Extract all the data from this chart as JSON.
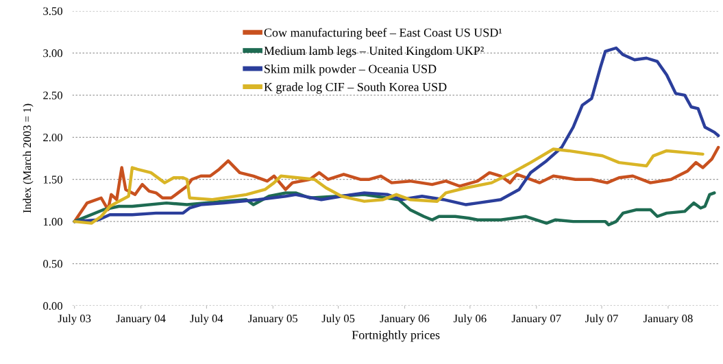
{
  "chart_data": {
    "type": "line",
    "xlabel": "Fortnightly prices",
    "ylabel": "Index (March 2003 = 1)",
    "xlim": [
      "2003-06-25",
      "2008-05-22"
    ],
    "ylim": [
      0,
      3.5
    ],
    "xticks": [
      {
        "value": "2003-07-01",
        "label": "July 03"
      },
      {
        "value": "2004-01-01",
        "label": "January 04"
      },
      {
        "value": "2004-07-01",
        "label": "July 04"
      },
      {
        "value": "2005-01-01",
        "label": "January 05"
      },
      {
        "value": "2005-07-01",
        "label": "July 05"
      },
      {
        "value": "2006-01-01",
        "label": "January 06"
      },
      {
        "value": "2006-07-01",
        "label": "July 06"
      },
      {
        "value": "2007-01-01",
        "label": "January 07"
      },
      {
        "value": "2007-07-01",
        "label": "July 07"
      },
      {
        "value": "2008-01-01",
        "label": "January 08"
      }
    ],
    "yticks": [
      {
        "value": 0,
        "label": "0.00"
      },
      {
        "value": 0.5,
        "label": "0.50"
      },
      {
        "value": 1,
        "label": "1.00"
      },
      {
        "value": 1.5,
        "label": "1.50"
      },
      {
        "value": 2,
        "label": "2.00"
      },
      {
        "value": 2.5,
        "label": "2.50"
      },
      {
        "value": 3,
        "label": "3.00"
      },
      {
        "value": 3.5,
        "label": "3.50"
      }
    ],
    "grid": "y",
    "legend": "top",
    "line_style": "solid",
    "marker": "none",
    "series": [
      {
        "name": "Cow manufacturing beef – East Coast US USD¹",
        "color": "#c8511f",
        "x": [
          "2003-07-01",
          "2003-08-05",
          "2003-09-13",
          "2003-10-02",
          "2003-10-11",
          "2003-10-26",
          "2003-11-09",
          "2003-11-20",
          "2003-12-16",
          "2004-01-05",
          "2004-01-24",
          "2004-02-12",
          "2004-03-01",
          "2004-03-25",
          "2004-04-13",
          "2004-05-08",
          "2004-05-21",
          "2004-06-15",
          "2004-07-11",
          "2004-08-05",
          "2004-08-30",
          "2004-10-01",
          "2004-11-08",
          "2004-12-16",
          "2005-01-04",
          "2005-02-05",
          "2005-02-24",
          "2005-04-13",
          "2005-05-09",
          "2005-06-03",
          "2005-07-16",
          "2005-08-31",
          "2005-09-25",
          "2005-10-27",
          "2005-11-26",
          "2006-01-16",
          "2006-03-18",
          "2006-04-25",
          "2006-06-02",
          "2006-07-22",
          "2006-08-24",
          "2006-09-24",
          "2006-10-20",
          "2006-11-08",
          "2007-01-10",
          "2007-02-17",
          "2007-04-19",
          "2007-06-03",
          "2007-07-16",
          "2007-08-18",
          "2007-09-25",
          "2007-11-13",
          "2008-01-09",
          "2008-02-24",
          "2008-03-18",
          "2008-04-06",
          "2008-05-01",
          "2008-05-19"
        ],
        "values": [
          1.0,
          1.22,
          1.28,
          1.14,
          1.32,
          1.26,
          1.64,
          1.38,
          1.32,
          1.44,
          1.36,
          1.34,
          1.28,
          1.28,
          1.34,
          1.42,
          1.5,
          1.54,
          1.54,
          1.62,
          1.72,
          1.58,
          1.54,
          1.48,
          1.54,
          1.38,
          1.46,
          1.5,
          1.58,
          1.5,
          1.56,
          1.5,
          1.5,
          1.54,
          1.46,
          1.48,
          1.44,
          1.48,
          1.42,
          1.48,
          1.58,
          1.54,
          1.46,
          1.56,
          1.46,
          1.54,
          1.5,
          1.5,
          1.46,
          1.52,
          1.54,
          1.46,
          1.5,
          1.6,
          1.7,
          1.64,
          1.74,
          1.88
        ]
      },
      {
        "name": "Medium lamb legs – United Kingdom UKP²",
        "color": "#1e6b52",
        "x": [
          "2003-07-01",
          "2003-09-19",
          "2003-11-01",
          "2003-12-08",
          "2004-03-12",
          "2004-05-08",
          "2004-08-18",
          "2004-10-19",
          "2004-11-08",
          "2004-12-21",
          "2005-02-05",
          "2005-03-05",
          "2005-04-13",
          "2005-09-11",
          "2005-12-15",
          "2006-01-16",
          "2006-02-23",
          "2006-03-18",
          "2006-04-06",
          "2006-05-21",
          "2006-06-28",
          "2006-07-22",
          "2006-09-24",
          "2006-12-03",
          "2007-01-29",
          "2007-02-23",
          "2007-04-13",
          "2007-07-11",
          "2007-07-20",
          "2007-08-10",
          "2007-08-29",
          "2007-10-06",
          "2007-11-13",
          "2007-12-02",
          "2007-12-28",
          "2008-02-16",
          "2008-03-12",
          "2008-03-31",
          "2008-04-12",
          "2008-04-25",
          "2008-05-08"
        ],
        "values": [
          1.0,
          1.14,
          1.18,
          1.18,
          1.22,
          1.2,
          1.24,
          1.26,
          1.2,
          1.3,
          1.34,
          1.34,
          1.28,
          1.32,
          1.26,
          1.14,
          1.06,
          1.02,
          1.06,
          1.06,
          1.04,
          1.02,
          1.02,
          1.06,
          0.98,
          1.02,
          1.0,
          1.0,
          0.96,
          1.0,
          1.1,
          1.14,
          1.14,
          1.06,
          1.1,
          1.12,
          1.22,
          1.16,
          1.18,
          1.32,
          1.34
        ]
      },
      {
        "name": "Skim milk powder – Oceania USD",
        "color": "#2b3e9b",
        "x": [
          "2003-07-01",
          "2003-09-05",
          "2003-10-07",
          "2003-12-08",
          "2004-02-12",
          "2004-04-27",
          "2004-05-15",
          "2004-06-15",
          "2004-08-18",
          "2004-11-21",
          "2005-02-05",
          "2005-03-05",
          "2005-05-15",
          "2005-07-10",
          "2005-09-11",
          "2005-11-15",
          "2005-12-22",
          "2006-02-18",
          "2006-04-19",
          "2006-06-20",
          "2006-07-22",
          "2006-09-24",
          "2006-11-14",
          "2006-12-16",
          "2007-01-29",
          "2007-03-12",
          "2007-04-13",
          "2007-05-08",
          "2007-06-03",
          "2007-06-28",
          "2007-07-11",
          "2007-08-10",
          "2007-08-29",
          "2007-09-30",
          "2007-11-02",
          "2007-12-02",
          "2007-12-28",
          "2008-01-22",
          "2008-02-16",
          "2008-03-05",
          "2008-03-24",
          "2008-04-12",
          "2008-05-08",
          "2008-05-19"
        ],
        "values": [
          1.0,
          1.02,
          1.08,
          1.08,
          1.1,
          1.1,
          1.16,
          1.2,
          1.22,
          1.26,
          1.3,
          1.32,
          1.26,
          1.3,
          1.34,
          1.32,
          1.26,
          1.3,
          1.26,
          1.2,
          1.22,
          1.26,
          1.38,
          1.58,
          1.72,
          1.88,
          2.12,
          2.38,
          2.46,
          2.84,
          3.02,
          3.06,
          2.98,
          2.92,
          2.94,
          2.9,
          2.74,
          2.52,
          2.5,
          2.36,
          2.34,
          2.12,
          2.06,
          2.02
        ]
      },
      {
        "name": "K grade log CIF – South Korea USD",
        "color": "#d9b526",
        "x": [
          "2003-07-01",
          "2003-08-17",
          "2003-09-13",
          "2003-10-07",
          "2003-11-01",
          "2003-11-28",
          "2003-12-08",
          "2003-12-22",
          "2004-01-29",
          "2004-03-07",
          "2004-04-01",
          "2004-04-27",
          "2004-05-08",
          "2004-05-15",
          "2004-07-17",
          "2004-10-19",
          "2004-12-10",
          "2005-01-04",
          "2005-01-23",
          "2005-04-26",
          "2005-05-28",
          "2005-07-10",
          "2005-09-11",
          "2005-11-02",
          "2005-12-09",
          "2006-01-16",
          "2006-04-01",
          "2006-04-25",
          "2006-06-20",
          "2006-08-30",
          "2006-10-26",
          "2006-12-16",
          "2007-02-17",
          "2007-03-31",
          "2007-07-03",
          "2007-08-18",
          "2007-11-02",
          "2007-11-21",
          "2007-12-28",
          "2008-04-06"
        ],
        "values": [
          1.0,
          0.98,
          1.06,
          1.18,
          1.24,
          1.3,
          1.64,
          1.62,
          1.58,
          1.46,
          1.52,
          1.52,
          1.5,
          1.28,
          1.26,
          1.32,
          1.38,
          1.46,
          1.54,
          1.5,
          1.4,
          1.3,
          1.24,
          1.26,
          1.32,
          1.26,
          1.24,
          1.34,
          1.4,
          1.46,
          1.58,
          1.7,
          1.86,
          1.84,
          1.78,
          1.7,
          1.66,
          1.78,
          1.84,
          1.8
        ]
      }
    ]
  }
}
